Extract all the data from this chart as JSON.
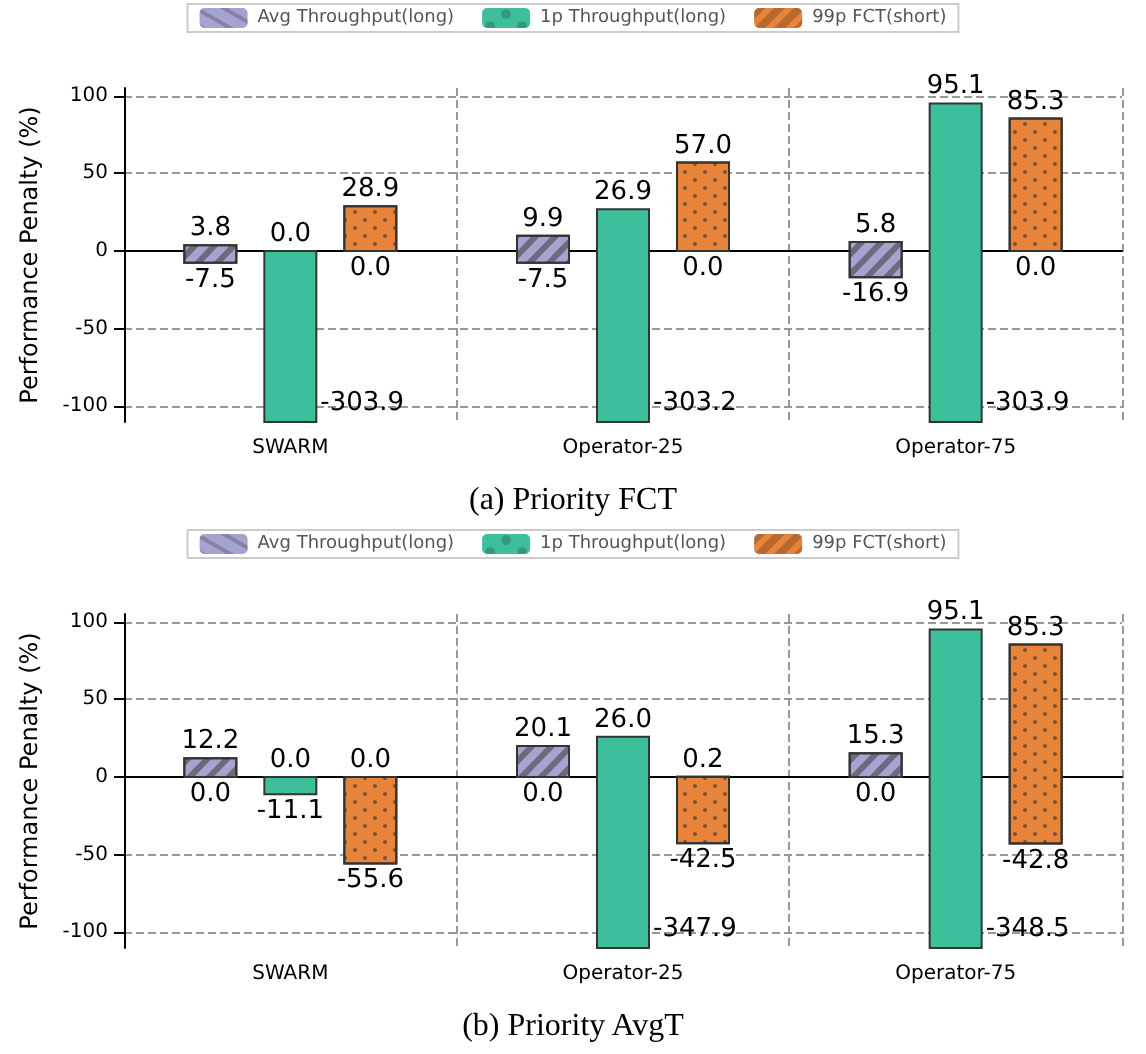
{
  "chart_data": [
    {
      "type": "bar",
      "title": "(a) Priority FCT",
      "ylabel": "Performance Penalty (%)",
      "categories": [
        "SWARM",
        "Operator-25",
        "Operator-75"
      ],
      "ylim": [
        -110,
        105
      ],
      "yticks": [
        -100,
        -50,
        0,
        50,
        100
      ],
      "grid": true,
      "legend": "top",
      "series": [
        {
          "name": "Avg Throughput(long)",
          "color": "#a5a3d0",
          "base": [
            -7.5,
            -7.5,
            -16.9
          ],
          "values": [
            11.3,
            17.4,
            22.7
          ],
          "value_labels": [
            "3.8",
            "9.9",
            "5.8"
          ]
        },
        {
          "name": "1p Throughput(long)",
          "color": "#3dbf9c",
          "base": [
            -303.9,
            -303.2,
            -303.9
          ],
          "values": [
            303.9,
            330.1,
            399.0
          ],
          "value_labels": [
            "0.0",
            "26.9",
            "95.1"
          ]
        },
        {
          "name": "99p FCT(short)",
          "color": "#e8833a",
          "base": [
            0.0,
            0.0,
            0.0
          ],
          "values": [
            28.9,
            57.0,
            85.3
          ],
          "value_labels": [
            "28.9",
            "57.0",
            "85.3"
          ]
        }
      ],
      "annotations": [
        "-7.5",
        "-303.9",
        "0.0",
        "-7.5",
        "-303.2",
        "0.0",
        "-16.9",
        "-303.9",
        "0.0"
      ]
    },
    {
      "type": "bar",
      "title": "(b) Priority AvgT",
      "ylabel": "Performance Penalty (%)",
      "categories": [
        "SWARM",
        "Operator-25",
        "Operator-75"
      ],
      "ylim": [
        -110,
        105
      ],
      "yticks": [
        -100,
        -50,
        0,
        50,
        100
      ],
      "grid": true,
      "legend": "top",
      "series": [
        {
          "name": "Avg Throughput(long)",
          "color": "#a5a3d0",
          "base": [
            0.0,
            0.0,
            0.0
          ],
          "values": [
            12.2,
            20.1,
            15.3
          ],
          "value_labels": [
            "12.2",
            "20.1",
            "15.3"
          ]
        },
        {
          "name": "1p Throughput(long)",
          "color": "#3dbf9c",
          "base": [
            -11.1,
            -347.9,
            -348.5
          ],
          "values": [
            11.1,
            373.9,
            443.6
          ],
          "value_labels": [
            "0.0",
            "26.0",
            "95.1"
          ]
        },
        {
          "name": "99p FCT(short)",
          "color": "#e8833a",
          "base": [
            -55.6,
            -42.5,
            -42.8
          ],
          "values": [
            55.6,
            42.7,
            128.1
          ],
          "value_labels": [
            "0.0",
            "0.2",
            "85.3"
          ]
        }
      ],
      "annotations": [
        "0.0",
        "-11.1",
        "-55.6",
        "0.0",
        "-347.9",
        "-42.5",
        "0.0",
        "-348.5",
        "-42.8"
      ]
    }
  ]
}
